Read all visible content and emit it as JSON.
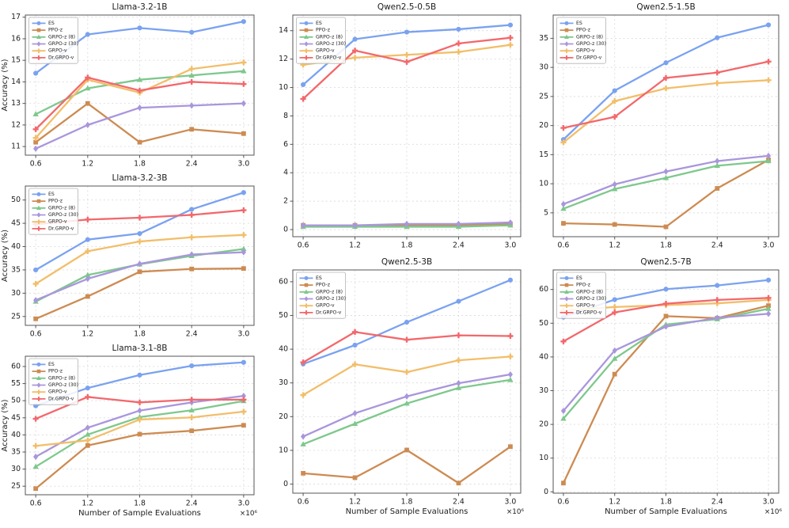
{
  "figure": {
    "xlabel": "Number of Sample Evaluations",
    "ylabel": "Accuracy (%)",
    "x_exponent": "×10⁶",
    "background": "#ffffff",
    "grid_color": "#dcdcdc",
    "spine_color": "#555555"
  },
  "legend": {
    "position": "upper left",
    "entries": [
      {
        "name": "ES",
        "color": "#7aa2f0",
        "marker": "circle"
      },
      {
        "name": "PPO-z",
        "color": "#cd8b52",
        "marker": "square"
      },
      {
        "name": "GRPO-z (8)",
        "color": "#7ec88c",
        "marker": "triangle"
      },
      {
        "name": "GRPO-z (30)",
        "color": "#a996dc",
        "marker": "diamond"
      },
      {
        "name": "GRPO-v",
        "color": "#f2be6a",
        "marker": "plus"
      },
      {
        "name": "Dr.GRPO-v",
        "color": "#f2686c",
        "marker": "plus"
      }
    ]
  },
  "chart_data": [
    {
      "type": "line",
      "title": "Llama-3.2-1B",
      "position": "top-left",
      "x": [
        0.6,
        1.2,
        1.8,
        2.4,
        3.0
      ],
      "xlim": [
        0.48,
        3.12
      ],
      "ylim": [
        10.6,
        17.1
      ],
      "yticks": [
        11,
        12,
        13,
        14,
        15,
        16,
        17
      ],
      "show_ylabel": true,
      "show_xlabel": false,
      "show_exponent": false,
      "grid": true,
      "series": [
        {
          "name": "ES",
          "values": [
            14.4,
            16.2,
            16.5,
            16.3,
            16.8
          ]
        },
        {
          "name": "PPO-z",
          "values": [
            11.2,
            13.0,
            11.2,
            11.8,
            11.6
          ]
        },
        {
          "name": "GRPO-z (8)",
          "values": [
            12.5,
            13.7,
            14.1,
            14.3,
            14.5
          ]
        },
        {
          "name": "GRPO-z (30)",
          "values": [
            10.9,
            12.0,
            12.8,
            12.9,
            13.0
          ]
        },
        {
          "name": "GRPO-v",
          "values": [
            11.4,
            14.1,
            13.5,
            14.6,
            14.9
          ]
        },
        {
          "name": "Dr.GRPO-v",
          "values": [
            11.8,
            14.2,
            13.6,
            14.0,
            13.9
          ]
        }
      ]
    },
    {
      "type": "line",
      "title": "Qwen2.5-0.5B",
      "position": "top-middle",
      "x": [
        0.6,
        1.2,
        1.8,
        2.4,
        3.0
      ],
      "xlim": [
        0.48,
        3.12
      ],
      "ylim": [
        -0.5,
        15.1
      ],
      "yticks": [
        0,
        2,
        4,
        6,
        8,
        10,
        12,
        14
      ],
      "show_ylabel": false,
      "show_xlabel": false,
      "show_exponent": false,
      "grid": true,
      "series": [
        {
          "name": "ES",
          "values": [
            10.2,
            13.4,
            13.9,
            14.1,
            14.4
          ]
        },
        {
          "name": "PPO-z",
          "values": [
            0.3,
            0.3,
            0.3,
            0.3,
            0.4
          ]
        },
        {
          "name": "GRPO-z (8)",
          "values": [
            0.2,
            0.2,
            0.2,
            0.2,
            0.3
          ]
        },
        {
          "name": "GRPO-z (30)",
          "values": [
            0.3,
            0.3,
            0.4,
            0.4,
            0.5
          ]
        },
        {
          "name": "GRPO-v",
          "values": [
            11.6,
            12.1,
            12.3,
            12.5,
            13.0
          ]
        },
        {
          "name": "Dr.GRPO-v",
          "values": [
            9.2,
            12.6,
            11.8,
            13.1,
            13.5
          ]
        }
      ]
    },
    {
      "type": "line",
      "title": "Qwen2.5-1.5B",
      "position": "top-right",
      "x": [
        0.6,
        1.2,
        1.8,
        2.4,
        3.0
      ],
      "xlim": [
        0.48,
        3.12
      ],
      "ylim": [
        0.9,
        39.0
      ],
      "yticks": [
        5,
        10,
        15,
        20,
        25,
        30,
        35
      ],
      "show_ylabel": false,
      "show_xlabel": false,
      "show_exponent": false,
      "grid": true,
      "series": [
        {
          "name": "ES",
          "values": [
            17.6,
            26.0,
            30.8,
            35.1,
            37.3
          ]
        },
        {
          "name": "PPO-z",
          "values": [
            3.2,
            3.0,
            2.6,
            9.2,
            14.1
          ]
        },
        {
          "name": "GRPO-z (8)",
          "values": [
            5.7,
            9.1,
            11.0,
            13.1,
            13.9
          ]
        },
        {
          "name": "GRPO-z (30)",
          "values": [
            6.5,
            9.9,
            12.1,
            13.9,
            14.8
          ]
        },
        {
          "name": "GRPO-v",
          "values": [
            17.1,
            24.2,
            26.4,
            27.3,
            27.8
          ]
        },
        {
          "name": "Dr.GRPO-v",
          "values": [
            19.6,
            21.5,
            28.2,
            29.1,
            31.0
          ]
        }
      ]
    },
    {
      "type": "line",
      "title": "Llama-3.2-3B",
      "position": "middle-left",
      "x": [
        0.6,
        1.2,
        1.8,
        2.4,
        3.0
      ],
      "xlim": [
        0.48,
        3.12
      ],
      "ylim": [
        23.1,
        53.0
      ],
      "yticks": [
        25,
        30,
        35,
        40,
        45,
        50
      ],
      "show_ylabel": true,
      "show_xlabel": false,
      "show_exponent": false,
      "grid": true,
      "series": [
        {
          "name": "ES",
          "values": [
            35.0,
            41.5,
            42.8,
            48.0,
            51.6
          ]
        },
        {
          "name": "PPO-z",
          "values": [
            24.5,
            29.3,
            34.6,
            35.2,
            35.3
          ]
        },
        {
          "name": "GRPO-z (8)",
          "values": [
            28.2,
            33.9,
            36.2,
            38.0,
            39.5
          ]
        },
        {
          "name": "GRPO-z (30)",
          "values": [
            28.5,
            33.1,
            36.3,
            38.3,
            38.8
          ]
        },
        {
          "name": "GRPO-v",
          "values": [
            32.0,
            39.0,
            41.1,
            42.0,
            42.5
          ]
        },
        {
          "name": "Dr.GRPO-v",
          "values": [
            44.8,
            45.8,
            46.2,
            46.8,
            47.8
          ]
        }
      ]
    },
    {
      "type": "line",
      "title": "Qwen2.5-3B",
      "position": "bottom-middle",
      "x": [
        0.6,
        1.2,
        1.8,
        2.4,
        3.0
      ],
      "xlim": [
        0.48,
        3.12
      ],
      "ylim": [
        -2.7,
        63.5
      ],
      "yticks": [
        0,
        10,
        20,
        30,
        40,
        50,
        60
      ],
      "show_ylabel": false,
      "show_xlabel": true,
      "show_exponent": true,
      "grid": true,
      "series": [
        {
          "name": "ES",
          "values": [
            35.6,
            41.2,
            48.0,
            54.2,
            60.5
          ]
        },
        {
          "name": "PPO-z",
          "values": [
            3.2,
            1.9,
            10.1,
            0.3,
            11.1
          ]
        },
        {
          "name": "GRPO-z (8)",
          "values": [
            11.8,
            17.9,
            23.9,
            28.5,
            30.9
          ]
        },
        {
          "name": "GRPO-z (30)",
          "values": [
            14.1,
            21.0,
            26.0,
            29.9,
            32.5
          ]
        },
        {
          "name": "GRPO-v",
          "values": [
            26.4,
            35.5,
            33.2,
            36.7,
            37.8
          ]
        },
        {
          "name": "Dr.GRPO-v",
          "values": [
            36.1,
            45.1,
            42.8,
            44.1,
            43.9
          ]
        }
      ]
    },
    {
      "type": "line",
      "title": "Qwen2.5-7B",
      "position": "bottom-right",
      "x": [
        0.6,
        1.2,
        1.8,
        2.4,
        3.0
      ],
      "xlim": [
        0.48,
        3.12
      ],
      "ylim": [
        -0.4,
        65.8
      ],
      "yticks": [
        0,
        10,
        20,
        30,
        40,
        50,
        60
      ],
      "show_ylabel": false,
      "show_xlabel": true,
      "show_exponent": true,
      "grid": true,
      "series": [
        {
          "name": "ES",
          "values": [
            51.8,
            57.0,
            60.1,
            61.2,
            62.8
          ]
        },
        {
          "name": "PPO-z",
          "values": [
            2.6,
            34.9,
            52.1,
            51.5,
            55.2
          ]
        },
        {
          "name": "GRPO-z (8)",
          "values": [
            21.7,
            39.5,
            49.6,
            51.2,
            54.3
          ]
        },
        {
          "name": "GRPO-z (30)",
          "values": [
            24.0,
            41.9,
            49.0,
            51.6,
            52.8
          ]
        },
        {
          "name": "GRPO-v",
          "values": [
            53.8,
            54.8,
            55.4,
            55.9,
            56.9
          ]
        },
        {
          "name": "Dr.GRPO-v",
          "values": [
            44.6,
            53.2,
            55.8,
            56.9,
            57.5
          ]
        }
      ]
    },
    {
      "type": "line",
      "title": "Llama-3.1-8B",
      "position": "bottom-left",
      "x": [
        0.6,
        1.2,
        1.8,
        2.4,
        3.0
      ],
      "xlim": [
        0.48,
        3.12
      ],
      "ylim": [
        22.5,
        63.0
      ],
      "yticks": [
        25,
        30,
        35,
        40,
        45,
        50,
        55,
        60
      ],
      "show_ylabel": true,
      "show_xlabel": true,
      "show_exponent": true,
      "grid": true,
      "series": [
        {
          "name": "ES",
          "values": [
            48.5,
            53.7,
            57.5,
            60.2,
            61.2
          ]
        },
        {
          "name": "PPO-z",
          "values": [
            24.3,
            36.9,
            40.2,
            41.2,
            42.8
          ]
        },
        {
          "name": "GRPO-z (8)",
          "values": [
            30.7,
            40.1,
            45.2,
            47.2,
            49.9
          ]
        },
        {
          "name": "GRPO-z (30)",
          "values": [
            33.6,
            42.1,
            47.1,
            49.5,
            51.4
          ]
        },
        {
          "name": "GRPO-v",
          "values": [
            36.8,
            38.4,
            44.5,
            45.1,
            46.8
          ]
        },
        {
          "name": "Dr.GRPO-v",
          "values": [
            44.7,
            51.1,
            49.5,
            50.3,
            50.3
          ]
        }
      ]
    }
  ]
}
